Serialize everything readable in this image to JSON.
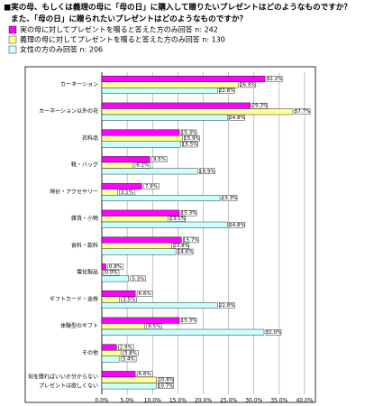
{
  "chart_data": {
    "type": "bar",
    "orientation": "horizontal",
    "title": "■実の母、もしくは義理の母に「母の日」に購入して贈りたいプレゼントはどのようなものですか？",
    "subtitle": "また、「母の日」に贈られたいプレゼントはどのようなものですか？",
    "categories": [
      "カーネーション",
      "カーネーション以外の花",
      "衣料品",
      "靴・バッグ",
      "時計・アクセサリー",
      "雑貨・小物",
      "食料・飲料",
      "電化製品",
      "ギフトカード・金券",
      "体験型のギフト",
      "その他",
      "何を贈ればいいか分からない"
    ],
    "extra_label": "プレゼントは欲しくない",
    "series": [
      {
        "name": "実の母に対してプレゼントを贈ると答えた方のみ回答 n: 242",
        "color": "#ff00ff",
        "values": [
          32.2,
          29.3,
          15.3,
          9.5,
          7.9,
          15.3,
          15.7,
          0.8,
          6.6,
          15.3,
          2.9,
          6.6
        ],
        "value_labels": [
          "32.2%",
          "29.3%",
          "15.3%",
          "9.5%",
          "7.9%",
          "15.3%",
          "15.7%",
          "0.8%",
          "6.6%",
          "15.3%",
          "2.9%",
          "6.6%"
        ]
      },
      {
        "name": "義理の母に対してプレゼントを贈ると答えた方のみ回答 n: 130",
        "color": "#ffff99",
        "values": [
          26.9,
          37.7,
          15.9,
          6.2,
          3.1,
          13.1,
          13.8,
          0.0,
          3.5,
          8.5,
          3.8,
          10.8
        ],
        "value_labels": [
          "26.9%",
          "37.7%",
          "15.9%",
          "6.2%",
          "3.1%",
          "13.1%",
          "13.8%",
          "0.0%",
          "3.5%",
          "8.5%",
          "3.8%",
          "10.8%"
        ]
      },
      {
        "name": "女性の方のみ回答 n: 206",
        "color": "#ccffff",
        "values": [
          22.8,
          24.8,
          15.5,
          18.9,
          23.3,
          24.8,
          14.6,
          5.3,
          22.8,
          32.0,
          3.4,
          10.7
        ],
        "value_labels": [
          "22.8%",
          "24.8%",
          "15.5%",
          "18.9%",
          "23.3%",
          "24.8%",
          "14.6%",
          "5.3%",
          "22.8%",
          "32.0%",
          "3.4%",
          "10.7%"
        ]
      }
    ],
    "xlim": [
      0,
      40
    ],
    "xticks": [
      {
        "value": 0,
        "label": "0.0%"
      },
      {
        "value": 5,
        "label": "5.0%"
      },
      {
        "value": 10,
        "label": "10.0%"
      },
      {
        "value": 15,
        "label": "15.0%"
      },
      {
        "value": 20,
        "label": "20.0%"
      },
      {
        "value": 25,
        "label": "25.0%"
      },
      {
        "value": 30,
        "label": "30.0%"
      },
      {
        "value": 35,
        "label": "35.0%"
      },
      {
        "value": 40,
        "label": "40.0%"
      }
    ],
    "grid": true
  }
}
